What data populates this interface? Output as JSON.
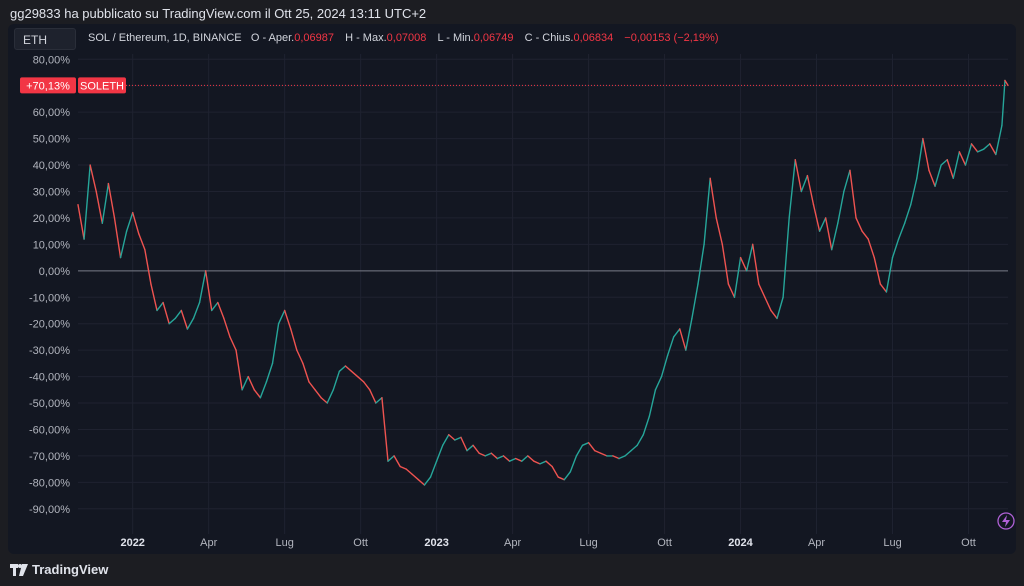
{
  "publisher": "gg29833 ha pubblicato su TradingView.com il Ott 25, 2024 13:11 UTC+2",
  "symbol_box": "ETH",
  "legend": {
    "pair": "SOL / Ethereum, 1D, BINANCE",
    "open_label": "O - Aper.",
    "open_value": "0,06987",
    "high_label": "H - Max.",
    "high_value": "0,07008",
    "low_label": "L - Min.",
    "low_value": "0,06749",
    "close_label": "C - Chius.",
    "close_value": "0,06834",
    "change_value": "−0,00153 (−2,19%)"
  },
  "last_value_badge": "+70,13%",
  "series_badge": "SOLETH",
  "brand": "TradingView",
  "colors": {
    "up": "#26a69a",
    "down": "#ef5350",
    "badge": "#f23645",
    "grid": "#1f2230",
    "zero_line": "#787b86"
  },
  "chart_data": {
    "type": "line",
    "scale": "percent",
    "ylim": [
      -95,
      82
    ],
    "y_ticks": [
      "80,00%",
      "70,00%",
      "60,00%",
      "50,00%",
      "40,00%",
      "30,00%",
      "20,00%",
      "10,00%",
      "0,00%",
      "-10,00%",
      "-20,00%",
      "-30,00%",
      "-40,00%",
      "-50,00%",
      "-60,00%",
      "-70,00%",
      "-80,00%",
      "-90,00%"
    ],
    "y_tick_values": [
      80,
      70,
      60,
      50,
      40,
      30,
      20,
      10,
      0,
      -10,
      -20,
      -30,
      -40,
      -50,
      -60,
      -70,
      -80,
      -90
    ],
    "x_ticks": [
      {
        "label": "2022",
        "x": 2022.0,
        "bold": true
      },
      {
        "label": "Apr",
        "x": 2022.25
      },
      {
        "label": "Lug",
        "x": 2022.5
      },
      {
        "label": "Ott",
        "x": 2022.75
      },
      {
        "label": "2023",
        "x": 2023.0,
        "bold": true
      },
      {
        "label": "Apr",
        "x": 2023.25
      },
      {
        "label": "Lug",
        "x": 2023.5
      },
      {
        "label": "Ott",
        "x": 2023.75
      },
      {
        "label": "2024",
        "x": 2024.0,
        "bold": true
      },
      {
        "label": "Apr",
        "x": 2024.25
      },
      {
        "label": "Lug",
        "x": 2024.5
      },
      {
        "label": "Ott",
        "x": 2024.75
      }
    ],
    "xlim": [
      2021.82,
      2024.88
    ],
    "last_value": 70.13,
    "series": [
      {
        "name": "SOLETH",
        "points": [
          [
            2021.82,
            25
          ],
          [
            2021.84,
            12
          ],
          [
            2021.86,
            40
          ],
          [
            2021.88,
            30
          ],
          [
            2021.9,
            18
          ],
          [
            2021.92,
            33
          ],
          [
            2021.94,
            20
          ],
          [
            2021.96,
            5
          ],
          [
            2021.98,
            15
          ],
          [
            2022.0,
            22
          ],
          [
            2022.02,
            14
          ],
          [
            2022.04,
            8
          ],
          [
            2022.06,
            -5
          ],
          [
            2022.08,
            -15
          ],
          [
            2022.1,
            -12
          ],
          [
            2022.12,
            -20
          ],
          [
            2022.14,
            -18
          ],
          [
            2022.16,
            -15
          ],
          [
            2022.18,
            -22
          ],
          [
            2022.2,
            -18
          ],
          [
            2022.22,
            -12
          ],
          [
            2022.24,
            0
          ],
          [
            2022.26,
            -15
          ],
          [
            2022.28,
            -12
          ],
          [
            2022.3,
            -18
          ],
          [
            2022.32,
            -25
          ],
          [
            2022.34,
            -30
          ],
          [
            2022.36,
            -45
          ],
          [
            2022.38,
            -40
          ],
          [
            2022.4,
            -45
          ],
          [
            2022.42,
            -48
          ],
          [
            2022.44,
            -42
          ],
          [
            2022.46,
            -35
          ],
          [
            2022.48,
            -20
          ],
          [
            2022.5,
            -15
          ],
          [
            2022.52,
            -22
          ],
          [
            2022.54,
            -30
          ],
          [
            2022.56,
            -35
          ],
          [
            2022.58,
            -42
          ],
          [
            2022.6,
            -45
          ],
          [
            2022.62,
            -48
          ],
          [
            2022.64,
            -50
          ],
          [
            2022.66,
            -45
          ],
          [
            2022.68,
            -38
          ],
          [
            2022.7,
            -36
          ],
          [
            2022.72,
            -38
          ],
          [
            2022.74,
            -40
          ],
          [
            2022.76,
            -42
          ],
          [
            2022.78,
            -45
          ],
          [
            2022.8,
            -50
          ],
          [
            2022.82,
            -48
          ],
          [
            2022.84,
            -72
          ],
          [
            2022.86,
            -70
          ],
          [
            2022.88,
            -74
          ],
          [
            2022.9,
            -75
          ],
          [
            2022.92,
            -77
          ],
          [
            2022.94,
            -79
          ],
          [
            2022.96,
            -81
          ],
          [
            2022.98,
            -78
          ],
          [
            2023.0,
            -72
          ],
          [
            2023.02,
            -66
          ],
          [
            2023.04,
            -62
          ],
          [
            2023.06,
            -64
          ],
          [
            2023.08,
            -63
          ],
          [
            2023.1,
            -68
          ],
          [
            2023.12,
            -66
          ],
          [
            2023.14,
            -69
          ],
          [
            2023.16,
            -70
          ],
          [
            2023.18,
            -69
          ],
          [
            2023.2,
            -71
          ],
          [
            2023.22,
            -70
          ],
          [
            2023.24,
            -72
          ],
          [
            2023.26,
            -71
          ],
          [
            2023.28,
            -72
          ],
          [
            2023.3,
            -70
          ],
          [
            2023.32,
            -72
          ],
          [
            2023.34,
            -73
          ],
          [
            2023.36,
            -72
          ],
          [
            2023.38,
            -74
          ],
          [
            2023.4,
            -78
          ],
          [
            2023.42,
            -79
          ],
          [
            2023.44,
            -76
          ],
          [
            2023.46,
            -70
          ],
          [
            2023.48,
            -66
          ],
          [
            2023.5,
            -65
          ],
          [
            2023.52,
            -68
          ],
          [
            2023.54,
            -69
          ],
          [
            2023.56,
            -70
          ],
          [
            2023.58,
            -70
          ],
          [
            2023.6,
            -71
          ],
          [
            2023.62,
            -70
          ],
          [
            2023.64,
            -68
          ],
          [
            2023.66,
            -66
          ],
          [
            2023.68,
            -62
          ],
          [
            2023.7,
            -55
          ],
          [
            2023.72,
            -45
          ],
          [
            2023.74,
            -40
          ],
          [
            2023.76,
            -32
          ],
          [
            2023.78,
            -25
          ],
          [
            2023.8,
            -22
          ],
          [
            2023.82,
            -30
          ],
          [
            2023.84,
            -18
          ],
          [
            2023.86,
            -5
          ],
          [
            2023.88,
            10
          ],
          [
            2023.9,
            35
          ],
          [
            2023.92,
            20
          ],
          [
            2023.94,
            10
          ],
          [
            2023.96,
            -5
          ],
          [
            2023.98,
            -10
          ],
          [
            2024.0,
            5
          ],
          [
            2024.02,
            0
          ],
          [
            2024.04,
            10
          ],
          [
            2024.06,
            -5
          ],
          [
            2024.08,
            -10
          ],
          [
            2024.1,
            -15
          ],
          [
            2024.12,
            -18
          ],
          [
            2024.14,
            -10
          ],
          [
            2024.16,
            20
          ],
          [
            2024.18,
            42
          ],
          [
            2024.2,
            30
          ],
          [
            2024.22,
            36
          ],
          [
            2024.24,
            25
          ],
          [
            2024.26,
            15
          ],
          [
            2024.28,
            20
          ],
          [
            2024.3,
            8
          ],
          [
            2024.32,
            18
          ],
          [
            2024.34,
            30
          ],
          [
            2024.36,
            38
          ],
          [
            2024.38,
            20
          ],
          [
            2024.4,
            15
          ],
          [
            2024.42,
            12
          ],
          [
            2024.44,
            5
          ],
          [
            2024.46,
            -5
          ],
          [
            2024.48,
            -8
          ],
          [
            2024.5,
            5
          ],
          [
            2024.52,
            12
          ],
          [
            2024.54,
            18
          ],
          [
            2024.56,
            25
          ],
          [
            2024.58,
            35
          ],
          [
            2024.6,
            50
          ],
          [
            2024.62,
            38
          ],
          [
            2024.64,
            32
          ],
          [
            2024.66,
            40
          ],
          [
            2024.68,
            42
          ],
          [
            2024.7,
            35
          ],
          [
            2024.72,
            45
          ],
          [
            2024.74,
            40
          ],
          [
            2024.76,
            48
          ],
          [
            2024.78,
            45
          ],
          [
            2024.8,
            46
          ],
          [
            2024.82,
            48
          ],
          [
            2024.84,
            44
          ],
          [
            2024.86,
            55
          ],
          [
            2024.87,
            72
          ],
          [
            2024.88,
            70.13
          ]
        ]
      }
    ]
  }
}
